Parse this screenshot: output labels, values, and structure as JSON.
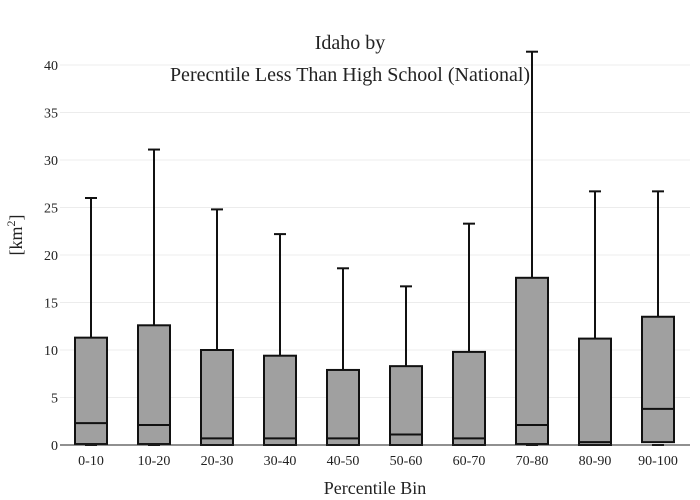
{
  "chart_data": {
    "type": "box",
    "title_line1": "Idaho  by",
    "title_line2": "Perecntile Less Than High School (National)",
    "xlabel": "Percentile Bin",
    "ylabel_base": "[km",
    "ylabel_sup": "2",
    "ylabel_close": "]",
    "ylim": [
      0,
      42
    ],
    "yticks": [
      0,
      5,
      10,
      15,
      20,
      25,
      30,
      35,
      40
    ],
    "grid": true,
    "color": "#a0a0a0",
    "categories": [
      "0-10",
      "10-20",
      "20-30",
      "30-40",
      "40-50",
      "50-60",
      "60-70",
      "70-80",
      "80-90",
      "90-100"
    ],
    "boxes": [
      {
        "low": 0.0,
        "q1": 0.1,
        "median": 2.3,
        "q3": 11.3,
        "high": 26.0
      },
      {
        "low": 0.0,
        "q1": 0.1,
        "median": 2.1,
        "q3": 12.6,
        "high": 31.1
      },
      {
        "low": 0.0,
        "q1": 0.0,
        "median": 0.7,
        "q3": 10.0,
        "high": 24.8
      },
      {
        "low": 0.0,
        "q1": 0.0,
        "median": 0.7,
        "q3": 9.4,
        "high": 22.2
      },
      {
        "low": 0.0,
        "q1": 0.0,
        "median": 0.7,
        "q3": 7.9,
        "high": 18.6
      },
      {
        "low": 0.0,
        "q1": 0.0,
        "median": 1.1,
        "q3": 8.3,
        "high": 16.7
      },
      {
        "low": 0.0,
        "q1": 0.0,
        "median": 0.7,
        "q3": 9.8,
        "high": 23.3
      },
      {
        "low": 0.0,
        "q1": 0.1,
        "median": 2.1,
        "q3": 17.6,
        "high": 41.4
      },
      {
        "low": 0.0,
        "q1": 0.0,
        "median": 0.3,
        "q3": 11.2,
        "high": 26.7
      },
      {
        "low": 0.0,
        "q1": 0.3,
        "median": 3.8,
        "q3": 13.5,
        "high": 26.7
      }
    ]
  }
}
